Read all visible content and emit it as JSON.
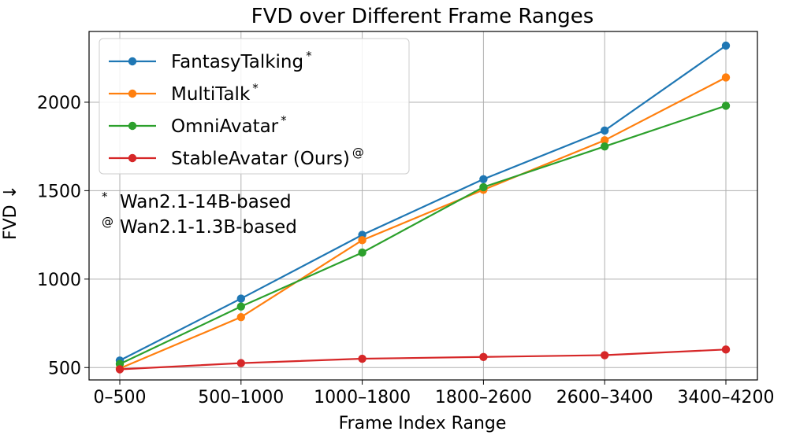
{
  "chart_data": {
    "type": "line",
    "title": "FVD over Different Frame Ranges",
    "xlabel": "Frame Index Range",
    "ylabel": "FVD ↓",
    "categories": [
      "0–500",
      "500–1000",
      "1000–1800",
      "1800–2600",
      "2600–3400",
      "3400–4200"
    ],
    "yticks": [
      500,
      1000,
      1500,
      2000
    ],
    "ylim": [
      430,
      2400
    ],
    "grid": true,
    "legend_position": "top-left",
    "series": [
      {
        "name": "FantasyTalking",
        "marker": "*",
        "color": "#1f77b4",
        "values": [
          540,
          890,
          1250,
          1565,
          1840,
          2320
        ]
      },
      {
        "name": "MultiTalk",
        "marker": "*",
        "color": "#ff7f0e",
        "values": [
          495,
          785,
          1220,
          1505,
          1785,
          2140
        ]
      },
      {
        "name": "OmniAvatar",
        "marker": "*",
        "color": "#2ca02c",
        "values": [
          520,
          845,
          1150,
          1520,
          1750,
          1980
        ]
      },
      {
        "name": "StableAvatar (Ours)",
        "marker": "@",
        "color": "#d62728",
        "values": [
          490,
          525,
          550,
          560,
          570,
          602
        ]
      }
    ],
    "notes": [
      {
        "symbol": "*",
        "text": "Wan2.1-14B-based"
      },
      {
        "symbol": "@",
        "text": "Wan2.1-1.3B-based"
      }
    ]
  }
}
